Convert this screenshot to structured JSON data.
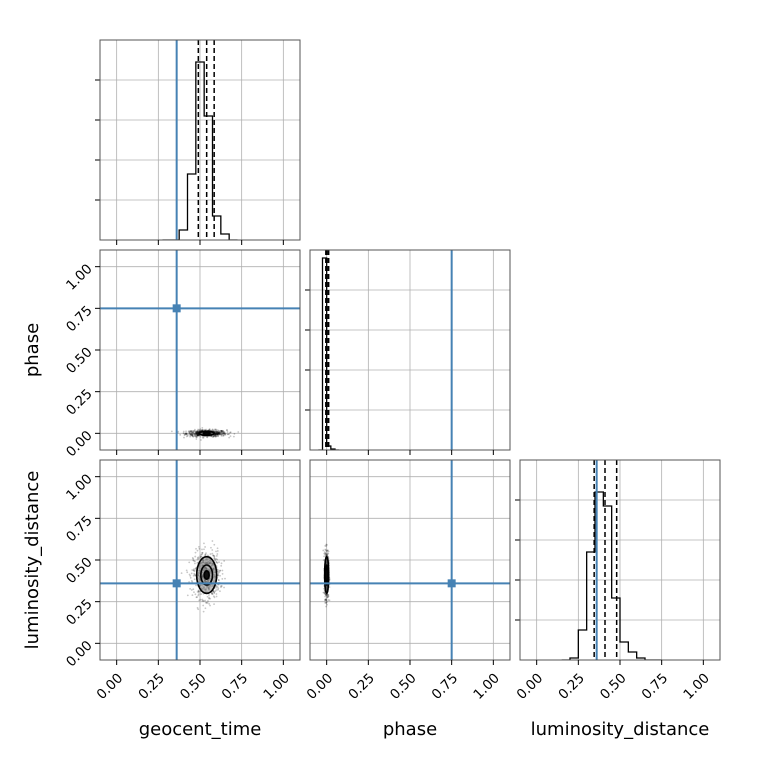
{
  "chart_data": {
    "type": "corner",
    "parameters": [
      "geocent_time",
      "phase",
      "luminosity_distance"
    ],
    "axis_range": [
      -0.1,
      1.1
    ],
    "tick_values": [
      0.0,
      0.25,
      0.5,
      0.75,
      1.0
    ],
    "tick_labels": [
      "0.00",
      "0.25",
      "0.50",
      "0.75",
      "1.00"
    ],
    "grid": true,
    "colors": {
      "truth": "#4682b4",
      "hist": "#000000",
      "samples": "#000000",
      "grid": "#b0b0b0"
    },
    "truths": {
      "geocent_time": 0.36,
      "phase": 0.75,
      "luminosity_distance": 0.36
    },
    "histograms": [
      {
        "parameter": "geocent_time",
        "bin_edges": [
          0.275,
          0.325,
          0.375,
          0.425,
          0.475,
          0.525,
          0.575,
          0.625,
          0.675,
          0.725
        ],
        "counts": [
          0,
          0,
          0.05,
          0.33,
          0.89,
          0.62,
          0.12,
          0.03,
          0
        ],
        "quantiles": [
          0.49,
          0.54,
          0.585
        ]
      },
      {
        "parameter": "phase",
        "bin_edges": [
          -0.05,
          -0.025,
          0.0,
          0.025,
          0.05,
          0.075
        ],
        "counts": [
          0,
          0.96,
          0.02,
          0.005,
          0
        ],
        "quantiles": [
          -0.005,
          0.003,
          0.012
        ]
      },
      {
        "parameter": "luminosity_distance",
        "bin_edges": [
          0.15,
          0.2,
          0.25,
          0.3,
          0.35,
          0.4,
          0.45,
          0.5,
          0.55,
          0.6,
          0.65,
          0.7,
          0.75
        ],
        "counts": [
          0,
          0.01,
          0.15,
          0.54,
          0.84,
          0.77,
          0.31,
          0.09,
          0.04,
          0.01,
          0,
          0
        ],
        "quantiles": [
          0.345,
          0.41,
          0.48
        ]
      }
    ],
    "scatter_2d": [
      {
        "x": "geocent_time",
        "y": "phase",
        "center": [
          0.54,
          0.0
        ],
        "spread": [
          0.06,
          0.01
        ],
        "contour_radii": [
          [
            0.045,
            0.012
          ],
          [
            0.02,
            0.006
          ]
        ]
      },
      {
        "x": "geocent_time",
        "y": "luminosity_distance",
        "center": [
          0.54,
          0.41
        ],
        "spread": [
          0.04,
          0.07
        ],
        "contour_radii": [
          [
            0.06,
            0.11
          ],
          [
            0.035,
            0.06
          ],
          [
            0.015,
            0.025
          ]
        ]
      },
      {
        "x": "phase",
        "y": "luminosity_distance",
        "center": [
          0.0,
          0.41
        ],
        "spread": [
          0.006,
          0.07
        ],
        "contour_radii": [
          [
            0.012,
            0.11
          ],
          [
            0.006,
            0.06
          ]
        ]
      }
    ],
    "xlabels": [
      "geocent_time",
      "phase",
      "luminosity_distance"
    ],
    "ylabels": [
      "phase",
      "luminosity_distance"
    ]
  }
}
